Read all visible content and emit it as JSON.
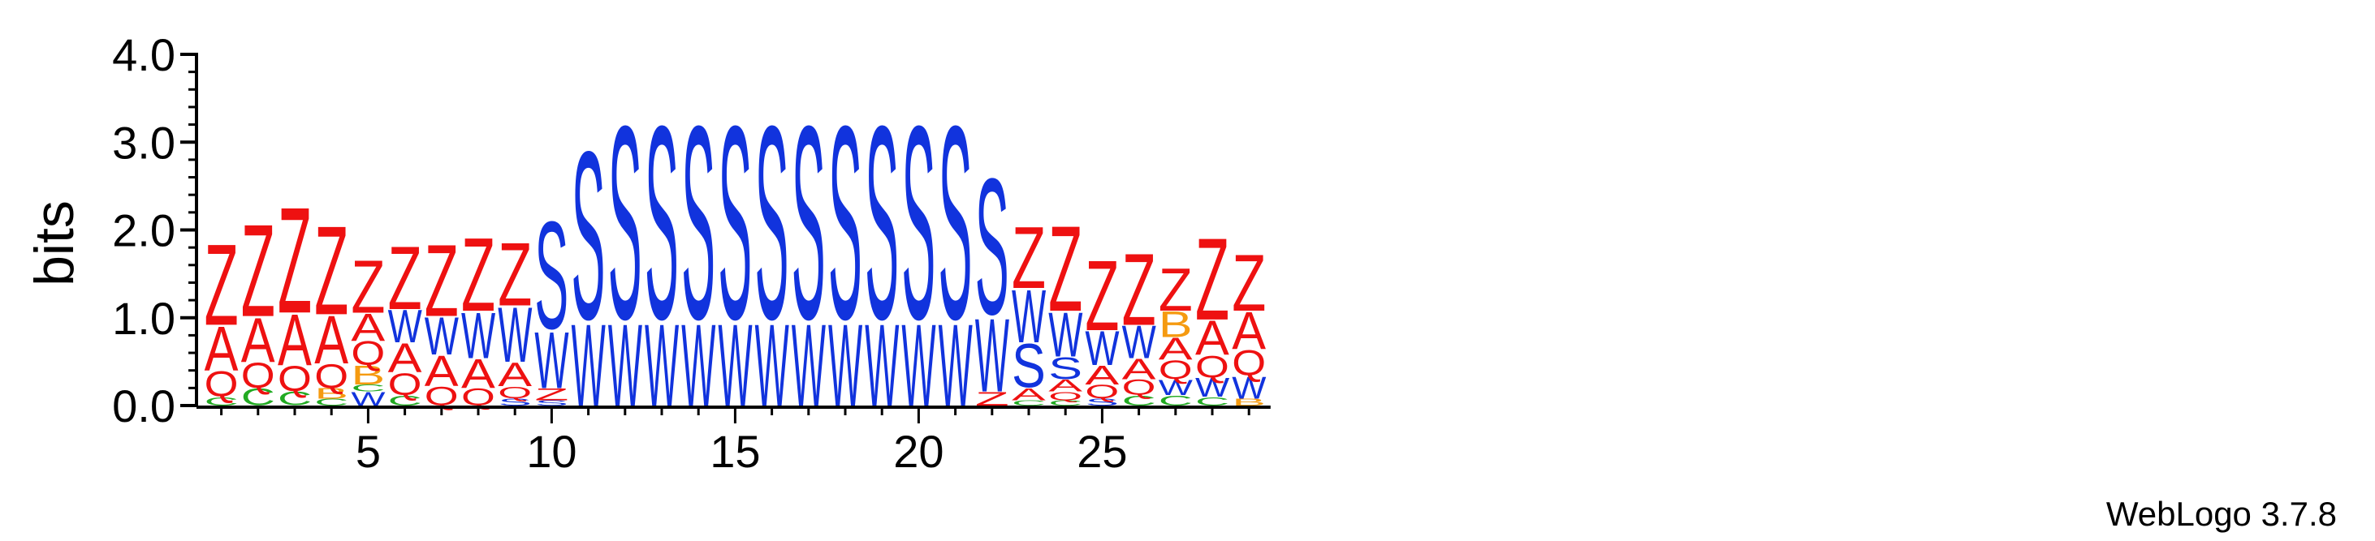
{
  "chart_data": {
    "type": "sequence-logo",
    "ylabel": "bits",
    "ylim": [
      0,
      4
    ],
    "yticks": [
      "0.0",
      "1.0",
      "2.0",
      "3.0",
      "4.0"
    ],
    "xticks": [
      5,
      10,
      15,
      20,
      25
    ],
    "xrange": [
      1,
      29
    ],
    "footer": "WebLogo 3.7.8",
    "colors": {
      "Z": "#ee1111",
      "A": "#ee1111",
      "Q": "#ee1111",
      "S": "#1133dd",
      "W": "#1133dd",
      "C": "#22aa22",
      "B": "#f59a10"
    },
    "positions": [
      {
        "pos": 1,
        "letters": [
          {
            "l": "C",
            "h": 0.1
          },
          {
            "l": "Q",
            "h": 0.3
          },
          {
            "l": "A",
            "h": 0.52
          },
          {
            "l": "Z",
            "h": 0.95
          }
        ]
      },
      {
        "pos": 2,
        "letters": [
          {
            "l": "C",
            "h": 0.2
          },
          {
            "l": "Q",
            "h": 0.3
          },
          {
            "l": "A",
            "h": 0.52
          },
          {
            "l": "Z",
            "h": 1.08
          }
        ]
      },
      {
        "pos": 3,
        "letters": [
          {
            "l": "C",
            "h": 0.16
          },
          {
            "l": "Q",
            "h": 0.3
          },
          {
            "l": "A",
            "h": 0.6
          },
          {
            "l": "Z",
            "h": 1.24
          }
        ]
      },
      {
        "pos": 4,
        "letters": [
          {
            "l": "C",
            "h": 0.08
          },
          {
            "l": "B",
            "h": 0.12
          },
          {
            "l": "Q",
            "h": 0.28
          },
          {
            "l": "A",
            "h": 0.56
          },
          {
            "l": "Z",
            "h": 1.04
          }
        ]
      },
      {
        "pos": 5,
        "letters": [
          {
            "l": "W",
            "h": 0.16
          },
          {
            "l": "C",
            "h": 0.08
          },
          {
            "l": "B",
            "h": 0.22
          },
          {
            "l": "Q",
            "h": 0.28
          },
          {
            "l": "A",
            "h": 0.32
          },
          {
            "l": "Z",
            "h": 0.62
          }
        ]
      },
      {
        "pos": 6,
        "letters": [
          {
            "l": "C",
            "h": 0.12
          },
          {
            "l": "Q",
            "h": 0.26
          },
          {
            "l": "A",
            "h": 0.34
          },
          {
            "l": "W",
            "h": 0.38
          },
          {
            "l": "Z",
            "h": 0.74
          }
        ]
      },
      {
        "pos": 7,
        "letters": [
          {
            "l": "Q",
            "h": 0.22
          },
          {
            "l": "A",
            "h": 0.36
          },
          {
            "l": "W",
            "h": 0.44
          },
          {
            "l": "Z",
            "h": 0.84
          }
        ]
      },
      {
        "pos": 8,
        "letters": [
          {
            "l": "Q",
            "h": 0.2
          },
          {
            "l": "A",
            "h": 0.34
          },
          {
            "l": "W",
            "h": 0.54
          },
          {
            "l": "Z",
            "h": 0.86
          }
        ]
      },
      {
        "pos": 9,
        "letters": [
          {
            "l": "S",
            "h": 0.08
          },
          {
            "l": "Q",
            "h": 0.14
          },
          {
            "l": "A",
            "h": 0.28
          },
          {
            "l": "W",
            "h": 0.64
          },
          {
            "l": "Z",
            "h": 0.74
          }
        ]
      },
      {
        "pos": 10,
        "letters": [
          {
            "l": "S",
            "h": 0.06
          },
          {
            "l": "Z",
            "h": 0.14
          },
          {
            "l": "W",
            "h": 0.66
          },
          {
            "l": "S",
            "h": 1.28
          }
        ]
      },
      {
        "pos": 11,
        "letters": [
          {
            "l": "W",
            "h": 0.96
          },
          {
            "l": "S",
            "h": 2.0
          }
        ]
      },
      {
        "pos": 12,
        "letters": [
          {
            "l": "W",
            "h": 0.96
          },
          {
            "l": "S",
            "h": 2.3
          }
        ]
      },
      {
        "pos": 13,
        "letters": [
          {
            "l": "W",
            "h": 0.96
          },
          {
            "l": "S",
            "h": 2.3
          }
        ]
      },
      {
        "pos": 14,
        "letters": [
          {
            "l": "W",
            "h": 0.96
          },
          {
            "l": "S",
            "h": 2.3
          }
        ]
      },
      {
        "pos": 15,
        "letters": [
          {
            "l": "W",
            "h": 0.96
          },
          {
            "l": "S",
            "h": 2.3
          }
        ]
      },
      {
        "pos": 16,
        "letters": [
          {
            "l": "W",
            "h": 0.96
          },
          {
            "l": "S",
            "h": 2.3
          }
        ]
      },
      {
        "pos": 17,
        "letters": [
          {
            "l": "W",
            "h": 0.96
          },
          {
            "l": "S",
            "h": 2.3
          }
        ]
      },
      {
        "pos": 18,
        "letters": [
          {
            "l": "W",
            "h": 0.96
          },
          {
            "l": "S",
            "h": 2.3
          }
        ]
      },
      {
        "pos": 19,
        "letters": [
          {
            "l": "W",
            "h": 0.96
          },
          {
            "l": "S",
            "h": 2.3
          }
        ]
      },
      {
        "pos": 20,
        "letters": [
          {
            "l": "W",
            "h": 0.96
          },
          {
            "l": "S",
            "h": 2.3
          }
        ]
      },
      {
        "pos": 21,
        "letters": [
          {
            "l": "W",
            "h": 0.96
          },
          {
            "l": "S",
            "h": 2.3
          }
        ]
      },
      {
        "pos": 22,
        "letters": [
          {
            "l": "Z",
            "h": 0.16
          },
          {
            "l": "W",
            "h": 0.86
          },
          {
            "l": "S",
            "h": 1.62
          }
        ]
      },
      {
        "pos": 23,
        "letters": [
          {
            "l": "C",
            "h": 0.06
          },
          {
            "l": "A",
            "h": 0.14
          },
          {
            "l": "S",
            "h": 0.52
          },
          {
            "l": "W",
            "h": 0.62
          },
          {
            "l": "Z",
            "h": 0.72
          }
        ]
      },
      {
        "pos": 24,
        "letters": [
          {
            "l": "C",
            "h": 0.06
          },
          {
            "l": "Q",
            "h": 0.1
          },
          {
            "l": "A",
            "h": 0.14
          },
          {
            "l": "S",
            "h": 0.26
          },
          {
            "l": "W",
            "h": 0.52
          },
          {
            "l": "Z",
            "h": 1.0
          }
        ]
      },
      {
        "pos": 25,
        "letters": [
          {
            "l": "S",
            "h": 0.08
          },
          {
            "l": "Q",
            "h": 0.16
          },
          {
            "l": "A",
            "h": 0.22
          },
          {
            "l": "W",
            "h": 0.4
          },
          {
            "l": "Z",
            "h": 0.82
          }
        ]
      },
      {
        "pos": 26,
        "letters": [
          {
            "l": "C",
            "h": 0.12
          },
          {
            "l": "Q",
            "h": 0.18
          },
          {
            "l": "A",
            "h": 0.24
          },
          {
            "l": "W",
            "h": 0.38
          },
          {
            "l": "Z",
            "h": 0.84
          }
        ]
      },
      {
        "pos": 27,
        "letters": [
          {
            "l": "C",
            "h": 0.12
          },
          {
            "l": "W",
            "h": 0.18
          },
          {
            "l": "Q",
            "h": 0.22
          },
          {
            "l": "A",
            "h": 0.26
          },
          {
            "l": "B",
            "h": 0.3
          },
          {
            "l": "Z",
            "h": 0.5
          }
        ]
      },
      {
        "pos": 28,
        "letters": [
          {
            "l": "C",
            "h": 0.1
          },
          {
            "l": "W",
            "h": 0.22
          },
          {
            "l": "Q",
            "h": 0.26
          },
          {
            "l": "A",
            "h": 0.4
          },
          {
            "l": "Z",
            "h": 0.96
          }
        ]
      },
      {
        "pos": 29,
        "letters": [
          {
            "l": "B",
            "h": 0.08
          },
          {
            "l": "W",
            "h": 0.26
          },
          {
            "l": "Q",
            "h": 0.3
          },
          {
            "l": "A",
            "h": 0.44
          },
          {
            "l": "Z",
            "h": 0.66
          }
        ]
      }
    ]
  }
}
